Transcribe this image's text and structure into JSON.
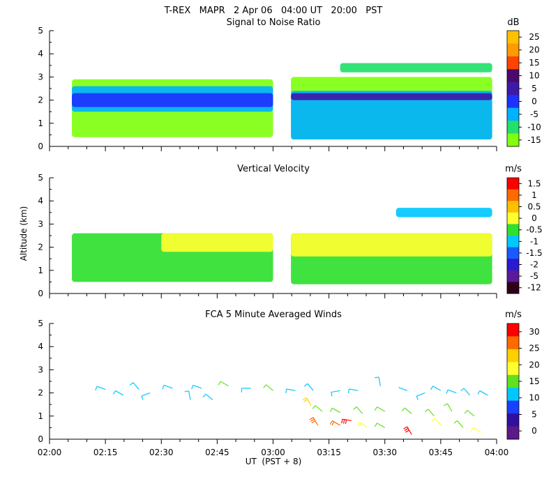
{
  "title": "T-REX   MAPR   2 Apr 06   04:00 UT   20:00   PST",
  "x_axis": {
    "label": "UT  (PST + 8)",
    "ticks": [
      "02:00",
      "02:15",
      "02:30",
      "02:45",
      "03:00",
      "03:15",
      "03:30",
      "03:45",
      "04:00"
    ],
    "range_hours_ut": [
      2.0,
      4.0
    ]
  },
  "y_axis_label": "Altitude (km)",
  "chart_data": [
    {
      "type": "heatmap",
      "title": "Signal to Noise Ratio",
      "ylabel": "Altitude (km)",
      "ylim": [
        0,
        5
      ],
      "yticks": [
        0,
        1,
        2,
        3,
        4,
        5
      ],
      "colorbar": {
        "unit": "dB",
        "labels": [
          "25",
          "20",
          "15",
          "10",
          "5",
          "0",
          "-5",
          "-10",
          "-15"
        ],
        "colors": [
          "#ffc000",
          "#ff9a00",
          "#ff4400",
          "#4a0a6a",
          "#3d1aa8",
          "#1e32ff",
          "#00b2ff",
          "#22e06a",
          "#80ff10"
        ]
      },
      "layers": [
        {
          "name": "SNR -15 dB region (segment 1)",
          "t": [
            2.1,
            3.0
          ],
          "alt": [
            0.4,
            2.9
          ],
          "value_db": -15
        },
        {
          "name": "SNR -5 dB band (segment 1)",
          "t": [
            2.1,
            3.0
          ],
          "alt": [
            1.5,
            2.6
          ],
          "value_db": -5
        },
        {
          "name": "SNR 0 dB core (segment 1)",
          "t": [
            2.1,
            3.0
          ],
          "alt": [
            1.7,
            2.3
          ],
          "value_db": 0
        },
        {
          "name": "SNR -15 dB region (segment 2)",
          "t": [
            3.08,
            3.98
          ],
          "alt": [
            0.3,
            3.0
          ],
          "value_db": -15
        },
        {
          "name": "SNR -5 dB band (segment 2)",
          "t": [
            3.08,
            3.98
          ],
          "alt": [
            0.3,
            2.4
          ],
          "value_db": -5
        },
        {
          "name": "SNR 5 dB core (segment 2)",
          "t": [
            3.08,
            3.98
          ],
          "alt": [
            2.0,
            2.3
          ],
          "value_db": 5
        },
        {
          "name": "SNR -10 dB upper layer",
          "t": [
            3.3,
            3.98
          ],
          "alt": [
            3.2,
            3.6
          ],
          "value_db": -10
        }
      ]
    },
    {
      "type": "heatmap",
      "title": "Vertical Velocity",
      "ylabel": "Altitude (km)",
      "ylim": [
        0,
        5
      ],
      "yticks": [
        0,
        1,
        2,
        3,
        4,
        5
      ],
      "colorbar": {
        "unit": "m/s",
        "labels": [
          "1.5",
          "1",
          "0.5",
          "0",
          "-0.5",
          "-1",
          "-1.5",
          "-2",
          "-5",
          "-12"
        ],
        "colors": [
          "#ff0000",
          "#ff6a00",
          "#ffc000",
          "#ffff30",
          "#30e030",
          "#00c8ff",
          "#1a5aff",
          "#2a1ad0",
          "#5a1a9a",
          "#30001a"
        ]
      },
      "layers": [
        {
          "name": "w -0.5 m/s region (segment 1)",
          "t": [
            2.1,
            3.0
          ],
          "alt": [
            0.5,
            2.6
          ],
          "value_ms": -0.5
        },
        {
          "name": "w 0 m/s band (segment 1)",
          "t": [
            2.5,
            3.0
          ],
          "alt": [
            1.8,
            2.6
          ],
          "value_ms": 0
        },
        {
          "name": "w -0.5 m/s region (segment 2)",
          "t": [
            3.08,
            3.98
          ],
          "alt": [
            0.4,
            2.6
          ],
          "value_ms": -0.5
        },
        {
          "name": "w 0 m/s band (segment 2)",
          "t": [
            3.08,
            3.98
          ],
          "alt": [
            1.6,
            2.6
          ],
          "value_ms": 0
        },
        {
          "name": "w -1 m/s upper layer",
          "t": [
            3.55,
            3.98
          ],
          "alt": [
            3.3,
            3.7
          ],
          "value_ms": -1
        }
      ]
    },
    {
      "type": "scatter",
      "subtype": "wind-barbs",
      "title": "FCA 5 Minute Averaged Winds",
      "ylabel": "Altitude (km)",
      "ylim": [
        0,
        5
      ],
      "yticks": [
        0,
        1,
        2,
        3,
        4,
        5
      ],
      "colorbar": {
        "unit": "m/s",
        "labels": [
          "30",
          "25",
          "20",
          "15",
          "10",
          "5",
          "0"
        ],
        "colors": [
          "#ff0000",
          "#ff6a00",
          "#ffd000",
          "#ffff30",
          "#60e020",
          "#00c8ff",
          "#1a40ff",
          "#3010a0",
          "#5a1a8a"
        ]
      },
      "barbs": [
        {
          "t": 2.25,
          "alt": 2.15,
          "dir_deg": 290,
          "speed_ms": 5
        },
        {
          "t": 2.33,
          "alt": 1.9,
          "dir_deg": 300,
          "speed_ms": 6
        },
        {
          "t": 2.4,
          "alt": 2.15,
          "dir_deg": 320,
          "speed_ms": 5
        },
        {
          "t": 2.45,
          "alt": 2.0,
          "dir_deg": 250,
          "speed_ms": 6
        },
        {
          "t": 2.55,
          "alt": 2.2,
          "dir_deg": 290,
          "speed_ms": 6
        },
        {
          "t": 2.63,
          "alt": 1.7,
          "dir_deg": 350,
          "speed_ms": 5
        },
        {
          "t": 2.68,
          "alt": 2.2,
          "dir_deg": 290,
          "speed_ms": 5
        },
        {
          "t": 2.73,
          "alt": 1.7,
          "dir_deg": 310,
          "speed_ms": 6
        },
        {
          "t": 2.8,
          "alt": 2.3,
          "dir_deg": 300,
          "speed_ms": 8
        },
        {
          "t": 2.9,
          "alt": 2.2,
          "dir_deg": 270,
          "speed_ms": 6
        },
        {
          "t": 3.0,
          "alt": 2.1,
          "dir_deg": 310,
          "speed_ms": 8
        },
        {
          "t": 3.1,
          "alt": 2.1,
          "dir_deg": 280,
          "speed_ms": 6
        },
        {
          "t": 3.18,
          "alt": 2.1,
          "dir_deg": 320,
          "speed_ms": 5
        },
        {
          "t": 3.3,
          "alt": 2.1,
          "dir_deg": 260,
          "speed_ms": 5
        },
        {
          "t": 3.38,
          "alt": 2.1,
          "dir_deg": 280,
          "speed_ms": 5
        },
        {
          "t": 3.48,
          "alt": 2.3,
          "dir_deg": 350,
          "speed_ms": 5
        },
        {
          "t": 3.6,
          "alt": 2.1,
          "dir_deg": 290,
          "speed_ms": 4
        },
        {
          "t": 3.68,
          "alt": 2.0,
          "dir_deg": 250,
          "speed_ms": 5
        },
        {
          "t": 3.75,
          "alt": 2.1,
          "dir_deg": 300,
          "speed_ms": 5
        },
        {
          "t": 3.82,
          "alt": 2.0,
          "dir_deg": 290,
          "speed_ms": 6
        },
        {
          "t": 3.88,
          "alt": 1.9,
          "dir_deg": 320,
          "speed_ms": 6
        },
        {
          "t": 3.96,
          "alt": 1.9,
          "dir_deg": 300,
          "speed_ms": 5
        },
        {
          "t": 3.17,
          "alt": 1.45,
          "dir_deg": 330,
          "speed_ms": 22
        },
        {
          "t": 3.22,
          "alt": 1.2,
          "dir_deg": 310,
          "speed_ms": 12
        },
        {
          "t": 3.3,
          "alt": 1.15,
          "dir_deg": 300,
          "speed_ms": 12
        },
        {
          "t": 3.4,
          "alt": 1.1,
          "dir_deg": 320,
          "speed_ms": 10
        },
        {
          "t": 3.5,
          "alt": 1.2,
          "dir_deg": 300,
          "speed_ms": 10
        },
        {
          "t": 3.62,
          "alt": 1.1,
          "dir_deg": 310,
          "speed_ms": 8
        },
        {
          "t": 3.72,
          "alt": 1.0,
          "dir_deg": 320,
          "speed_ms": 12
        },
        {
          "t": 3.8,
          "alt": 1.2,
          "dir_deg": 330,
          "speed_ms": 10
        },
        {
          "t": 3.9,
          "alt": 1.0,
          "dir_deg": 310,
          "speed_ms": 10
        },
        {
          "t": 3.2,
          "alt": 0.6,
          "dir_deg": 330,
          "speed_ms": 26
        },
        {
          "t": 3.3,
          "alt": 0.6,
          "dir_deg": 300,
          "speed_ms": 24
        },
        {
          "t": 3.35,
          "alt": 0.8,
          "dir_deg": 280,
          "speed_ms": 28
        },
        {
          "t": 3.42,
          "alt": 0.5,
          "dir_deg": 310,
          "speed_ms": 15
        },
        {
          "t": 3.5,
          "alt": 0.5,
          "dir_deg": 300,
          "speed_ms": 10
        },
        {
          "t": 3.62,
          "alt": 0.2,
          "dir_deg": 330,
          "speed_ms": 28
        },
        {
          "t": 3.75,
          "alt": 0.6,
          "dir_deg": 320,
          "speed_ms": 14
        },
        {
          "t": 3.85,
          "alt": 0.5,
          "dir_deg": 320,
          "speed_ms": 12
        },
        {
          "t": 3.93,
          "alt": 0.3,
          "dir_deg": 300,
          "speed_ms": 14
        }
      ]
    }
  ]
}
